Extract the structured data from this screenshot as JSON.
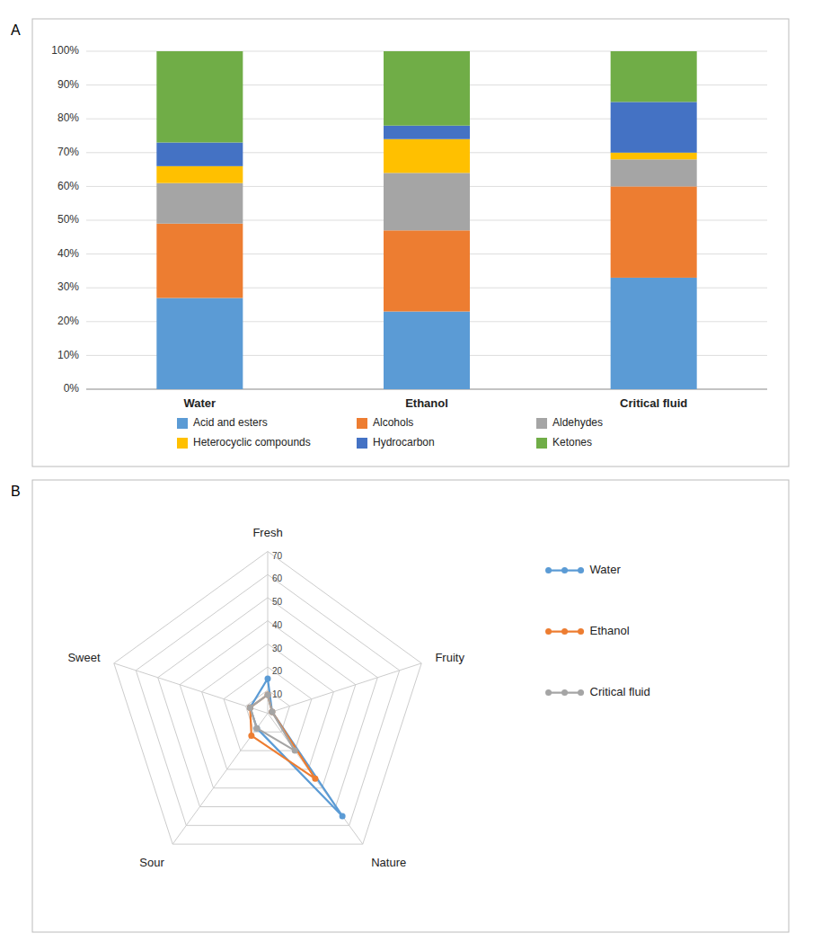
{
  "chart_data": [
    {
      "type": "bar",
      "title": "A",
      "stacked": true,
      "grid": true,
      "legend": "bottom",
      "categories": [
        "Water",
        "Ethanol",
        "Critical fluid"
      ],
      "series": [
        {
          "name": "Acid and esters",
          "color": "#5B9BD5",
          "values": [
            27,
            23,
            33
          ]
        },
        {
          "name": "Alcohols",
          "color": "#ED7D31",
          "values": [
            22,
            24,
            27
          ]
        },
        {
          "name": "Aldehydes",
          "color": "#A5A5A5",
          "values": [
            12,
            17,
            8
          ]
        },
        {
          "name": "Heterocyclic compounds",
          "color": "#FFC000",
          "values": [
            5,
            10,
            2
          ]
        },
        {
          "name": "Hydrocarbon",
          "color": "#4472C4",
          "values": [
            7,
            4,
            15
          ]
        },
        {
          "name": "Ketones",
          "color": "#70AD47",
          "values": [
            27,
            22,
            15
          ]
        }
      ],
      "ylim": [
        0,
        100
      ],
      "yticks": [
        {
          "value": 0,
          "label": "0%"
        },
        {
          "value": 10,
          "label": "10%"
        },
        {
          "value": 20,
          "label": "20%"
        },
        {
          "value": 30,
          "label": "30%"
        },
        {
          "value": 40,
          "label": "40%"
        },
        {
          "value": 50,
          "label": "50%"
        },
        {
          "value": 60,
          "label": "60%"
        },
        {
          "value": 70,
          "label": "70%"
        },
        {
          "value": 80,
          "label": "80%"
        },
        {
          "value": 90,
          "label": "90%"
        },
        {
          "value": 100,
          "label": "100%"
        }
      ]
    },
    {
      "type": "radar",
      "title": "B",
      "grid": true,
      "legend": "right",
      "marker": "circle",
      "categories": [
        "Fresh",
        "Fruity",
        "Nature",
        "Sour",
        "Sweet"
      ],
      "series": [
        {
          "name": "Water",
          "color": "#5B9BD5",
          "values": [
            15,
            2,
            55,
            8,
            8
          ]
        },
        {
          "name": "Ethanol",
          "color": "#ED7D31",
          "values": [
            8,
            2,
            35,
            12,
            8
          ]
        },
        {
          "name": "Critical fluid",
          "color": "#A5A5A5",
          "values": [
            8,
            2,
            20,
            8,
            8
          ]
        }
      ],
      "ylim": [
        0,
        70
      ],
      "yticks": [
        10,
        20,
        30,
        40,
        50,
        60,
        70
      ]
    }
  ]
}
